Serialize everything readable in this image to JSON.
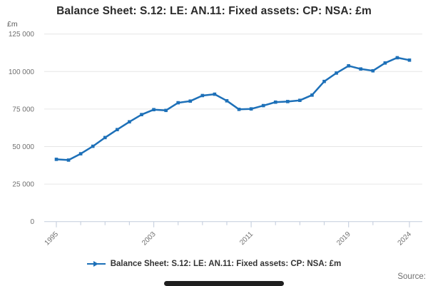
{
  "title": "Balance Sheet: S.12: LE: AN.11: Fixed assets: CP: NSA: £m",
  "y_axis": {
    "unit_label": "£m",
    "tick_values": [
      0,
      25000,
      50000,
      75000,
      100000,
      125000
    ],
    "tick_labels": [
      "0",
      "25 000",
      "50 000",
      "75 000",
      "100 000",
      "125 000"
    ]
  },
  "x_axis": {
    "major_tick_years": [
      1995,
      2003,
      2011,
      2019,
      2024
    ],
    "major_tick_labels": [
      "1995",
      "2003",
      "2011",
      "2019",
      "2024"
    ],
    "minor_tick_years": [
      1997,
      1999,
      2001,
      2005,
      2007,
      2009,
      2013,
      2015,
      2017,
      2021
    ]
  },
  "legend": {
    "label": "Balance Sheet: S.12: LE: AN.11: Fixed assets: CP: NSA: £m"
  },
  "source": {
    "label": "Source:"
  },
  "colors": {
    "series": "#1d70b8",
    "grid": "#e6e6e6",
    "axis": "#c9d2e0",
    "tick_text": "#6f6f6f",
    "title_text": "#2b2b2b"
  },
  "chart_data": {
    "type": "line",
    "title": "Balance Sheet: S.12: LE: AN.11: Fixed assets: CP: NSA: £m",
    "xlabel": "",
    "ylabel": "£m",
    "ylim": [
      0,
      125000
    ],
    "grid": true,
    "legend_position": "bottom",
    "x": [
      1995,
      1996,
      1997,
      1998,
      1999,
      2000,
      2001,
      2002,
      2003,
      2004,
      2005,
      2006,
      2007,
      2008,
      2009,
      2010,
      2011,
      2012,
      2013,
      2014,
      2015,
      2016,
      2017,
      2018,
      2019,
      2020,
      2021,
      2022,
      2023,
      2024
    ],
    "series": [
      {
        "name": "Balance Sheet: S.12: LE: AN.11: Fixed assets: CP: NSA: £m",
        "values": [
          41500,
          41000,
          45200,
          50200,
          56000,
          61300,
          66500,
          71300,
          74600,
          74100,
          79200,
          80300,
          84000,
          84900,
          80500,
          74800,
          75100,
          77300,
          79600,
          80000,
          80800,
          84300,
          93400,
          99000,
          103800,
          101700,
          100500,
          105700,
          109200,
          107600
        ]
      }
    ]
  }
}
